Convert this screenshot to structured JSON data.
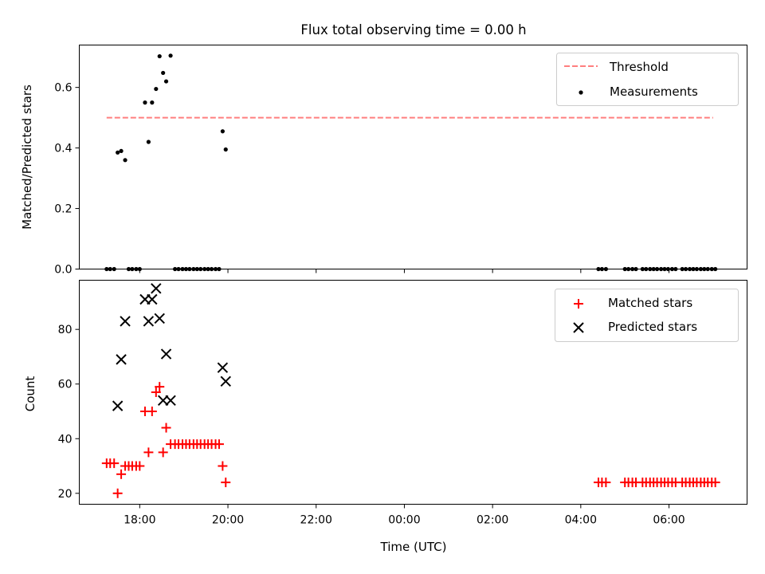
{
  "chart_data": [
    {
      "type": "scatter",
      "title": "Flux total observing time = 0.00 h",
      "xlabel": "",
      "ylabel": "Matched/Predicted stars",
      "xlim": [
        16.63,
        31.77
      ],
      "ylim": [
        0.0,
        0.74
      ],
      "yticks": [
        0.0,
        0.2,
        0.4,
        0.6
      ],
      "ytick_labels": [
        "0.0",
        "0.2",
        "0.4",
        "0.6"
      ],
      "grid": false,
      "legend_position": "top-right",
      "threshold": {
        "name": "Threshold",
        "y": 0.5,
        "x_range": [
          17.25,
          31.0
        ],
        "color": "#ff7f7f",
        "style": "dashed"
      },
      "series": [
        {
          "name": "Measurements",
          "color": "#000000",
          "marker": "dot",
          "points": [
            [
              17.25,
              0.0
            ],
            [
              17.33,
              0.0
            ],
            [
              17.42,
              0.0
            ],
            [
              17.5,
              0.385
            ],
            [
              17.58,
              0.39
            ],
            [
              17.67,
              0.36
            ],
            [
              17.75,
              0.0
            ],
            [
              17.83,
              0.0
            ],
            [
              17.92,
              0.0
            ],
            [
              18.0,
              0.0
            ],
            [
              18.12,
              0.55
            ],
            [
              18.2,
              0.42
            ],
            [
              18.28,
              0.55
            ],
            [
              18.37,
              0.595
            ],
            [
              18.45,
              0.703
            ],
            [
              18.53,
              0.648
            ],
            [
              18.6,
              0.62
            ],
            [
              18.7,
              0.705
            ],
            [
              18.8,
              0.0
            ],
            [
              18.88,
              0.0
            ],
            [
              18.97,
              0.0
            ],
            [
              19.05,
              0.0
            ],
            [
              19.13,
              0.0
            ],
            [
              19.22,
              0.0
            ],
            [
              19.3,
              0.0
            ],
            [
              19.38,
              0.0
            ],
            [
              19.47,
              0.0
            ],
            [
              19.55,
              0.0
            ],
            [
              19.63,
              0.0
            ],
            [
              19.72,
              0.0
            ],
            [
              19.8,
              0.0
            ],
            [
              19.88,
              0.455
            ],
            [
              19.95,
              0.395
            ],
            [
              28.4,
              0.0
            ],
            [
              28.48,
              0.0
            ],
            [
              28.57,
              0.0
            ],
            [
              29.0,
              0.0
            ],
            [
              29.08,
              0.0
            ],
            [
              29.17,
              0.0
            ],
            [
              29.25,
              0.0
            ],
            [
              29.4,
              0.0
            ],
            [
              29.48,
              0.0
            ],
            [
              29.57,
              0.0
            ],
            [
              29.65,
              0.0
            ],
            [
              29.73,
              0.0
            ],
            [
              29.82,
              0.0
            ],
            [
              29.9,
              0.0
            ],
            [
              29.98,
              0.0
            ],
            [
              30.07,
              0.0
            ],
            [
              30.15,
              0.0
            ],
            [
              30.3,
              0.0
            ],
            [
              30.38,
              0.0
            ],
            [
              30.47,
              0.0
            ],
            [
              30.55,
              0.0
            ],
            [
              30.63,
              0.0
            ],
            [
              30.72,
              0.0
            ],
            [
              30.8,
              0.0
            ],
            [
              30.88,
              0.0
            ],
            [
              30.97,
              0.0
            ],
            [
              31.05,
              0.0
            ]
          ]
        }
      ]
    },
    {
      "type": "scatter",
      "title": "",
      "xlabel": "Time (UTC)",
      "ylabel": "Count",
      "xlim": [
        16.63,
        31.77
      ],
      "ylim": [
        16.0,
        98.0
      ],
      "xticks": [
        18,
        20,
        22,
        24,
        26,
        28,
        30
      ],
      "xtick_labels": [
        "18:00",
        "20:00",
        "22:00",
        "00:00",
        "02:00",
        "04:00",
        "06:00"
      ],
      "yticks": [
        20,
        40,
        60,
        80
      ],
      "ytick_labels": [
        "20",
        "40",
        "60",
        "80"
      ],
      "grid": false,
      "legend_position": "top-right",
      "series": [
        {
          "name": "Matched stars",
          "color": "#ff0000",
          "marker": "plus",
          "points": [
            [
              17.25,
              31
            ],
            [
              17.33,
              31
            ],
            [
              17.42,
              31
            ],
            [
              17.5,
              20
            ],
            [
              17.58,
              27
            ],
            [
              17.67,
              30
            ],
            [
              17.75,
              30
            ],
            [
              17.83,
              30
            ],
            [
              17.92,
              30
            ],
            [
              18.0,
              30
            ],
            [
              18.12,
              50
            ],
            [
              18.2,
              35
            ],
            [
              18.28,
              50
            ],
            [
              18.37,
              57
            ],
            [
              18.45,
              59
            ],
            [
              18.53,
              35
            ],
            [
              18.6,
              44
            ],
            [
              18.7,
              38
            ],
            [
              18.8,
              38
            ],
            [
              18.88,
              38
            ],
            [
              18.97,
              38
            ],
            [
              19.05,
              38
            ],
            [
              19.13,
              38
            ],
            [
              19.22,
              38
            ],
            [
              19.3,
              38
            ],
            [
              19.38,
              38
            ],
            [
              19.47,
              38
            ],
            [
              19.55,
              38
            ],
            [
              19.63,
              38
            ],
            [
              19.72,
              38
            ],
            [
              19.8,
              38
            ],
            [
              19.88,
              30
            ],
            [
              19.95,
              24
            ],
            [
              28.4,
              24
            ],
            [
              28.48,
              24
            ],
            [
              28.57,
              24
            ],
            [
              29.0,
              24
            ],
            [
              29.08,
              24
            ],
            [
              29.17,
              24
            ],
            [
              29.25,
              24
            ],
            [
              29.4,
              24
            ],
            [
              29.48,
              24
            ],
            [
              29.57,
              24
            ],
            [
              29.65,
              24
            ],
            [
              29.73,
              24
            ],
            [
              29.82,
              24
            ],
            [
              29.9,
              24
            ],
            [
              29.98,
              24
            ],
            [
              30.07,
              24
            ],
            [
              30.15,
              24
            ],
            [
              30.3,
              24
            ],
            [
              30.38,
              24
            ],
            [
              30.47,
              24
            ],
            [
              30.55,
              24
            ],
            [
              30.63,
              24
            ],
            [
              30.72,
              24
            ],
            [
              30.8,
              24
            ],
            [
              30.88,
              24
            ],
            [
              30.97,
              24
            ],
            [
              31.05,
              24
            ]
          ]
        },
        {
          "name": "Predicted stars",
          "color": "#000000",
          "marker": "x",
          "points": [
            [
              17.5,
              52
            ],
            [
              17.58,
              69
            ],
            [
              17.67,
              83
            ],
            [
              18.12,
              91
            ],
            [
              18.2,
              83
            ],
            [
              18.28,
              91
            ],
            [
              18.37,
              95
            ],
            [
              18.45,
              84
            ],
            [
              18.53,
              54
            ],
            [
              18.6,
              71
            ],
            [
              18.7,
              54
            ],
            [
              19.88,
              66
            ],
            [
              19.95,
              61
            ]
          ]
        }
      ]
    }
  ]
}
